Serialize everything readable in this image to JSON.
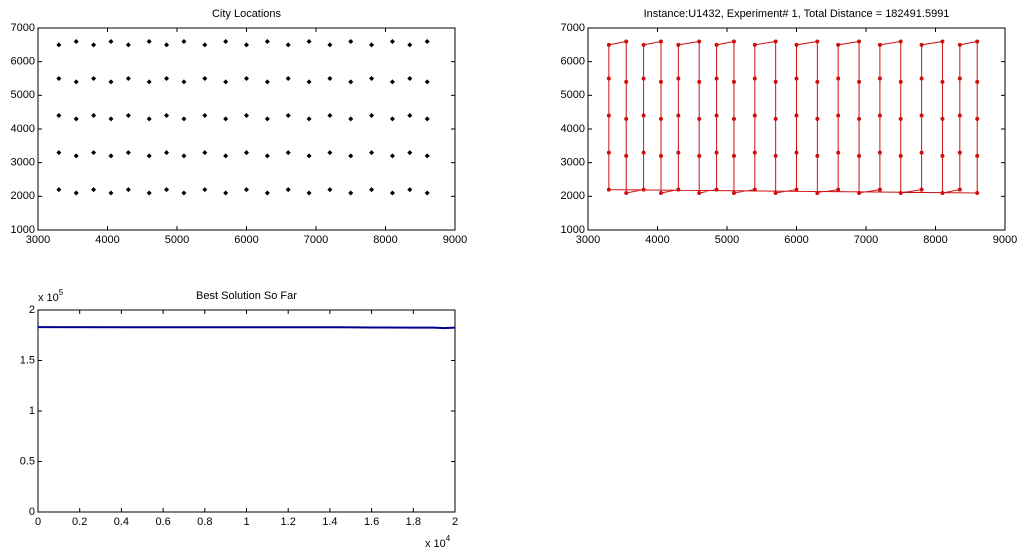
{
  "chart_data": [
    {
      "type": "scatter",
      "title": "City Locations",
      "color": "#000000",
      "x": [
        3300,
        3300,
        3300,
        3300,
        3300,
        3550,
        3550,
        3550,
        3550,
        3550,
        3800,
        3800,
        3800,
        3800,
        3800,
        4050,
        4050,
        4050,
        4050,
        4050,
        4300,
        4300,
        4300,
        4300,
        4300,
        4600,
        4600,
        4600,
        4600,
        4600,
        4850,
        4850,
        4850,
        4850,
        4850,
        5100,
        5100,
        5100,
        5100,
        5100,
        5400,
        5400,
        5400,
        5400,
        5400,
        5700,
        5700,
        5700,
        5700,
        5700,
        6000,
        6000,
        6000,
        6000,
        6000,
        6300,
        6300,
        6300,
        6300,
        6300,
        6600,
        6600,
        6600,
        6600,
        6600,
        6900,
        6900,
        6900,
        6900,
        6900,
        7200,
        7200,
        7200,
        7200,
        7200,
        7500,
        7500,
        7500,
        7500,
        7500,
        7800,
        7800,
        7800,
        7800,
        7800,
        8100,
        8100,
        8100,
        8100,
        8100,
        8350,
        8350,
        8350,
        8350,
        8350,
        8600,
        8600,
        8600,
        8600,
        8600
      ],
      "y": [
        2200,
        3300,
        4400,
        5500,
        6500,
        6600,
        5400,
        4300,
        3200,
        2100,
        2200,
        3300,
        4400,
        5500,
        6500,
        6600,
        5400,
        4300,
        3200,
        2100,
        2200,
        3300,
        4400,
        5500,
        6500,
        6600,
        5400,
        4300,
        3200,
        2100,
        2200,
        3300,
        4400,
        5500,
        6500,
        6600,
        5400,
        4300,
        3200,
        2100,
        2200,
        3300,
        4400,
        5500,
        6500,
        6600,
        5400,
        4300,
        3200,
        2100,
        2200,
        3300,
        4400,
        5500,
        6500,
        6600,
        5400,
        4300,
        3200,
        2100,
        2200,
        3300,
        4400,
        5500,
        6500,
        6600,
        5400,
        4300,
        3200,
        2100,
        2200,
        3300,
        4400,
        5500,
        6500,
        6600,
        5400,
        4300,
        3200,
        2100,
        2200,
        3300,
        4400,
        5500,
        6500,
        6600,
        5400,
        4300,
        3200,
        2100,
        2200,
        3300,
        4400,
        5500,
        6500,
        6600,
        5400,
        4300,
        3200,
        2100
      ],
      "xlim": [
        3000,
        9000
      ],
      "xticks": [
        3000,
        4000,
        5000,
        6000,
        7000,
        8000,
        9000
      ],
      "ylim": [
        1000,
        7000
      ],
      "yticks": [
        1000,
        2000,
        3000,
        4000,
        5000,
        6000,
        7000
      ]
    },
    {
      "type": "tour",
      "title": "Instance:U1432, Experiment# 1, Total Distance = 182491.5991",
      "color": "#cc1111",
      "x": [
        3300,
        3300,
        3300,
        3300,
        3300,
        3550,
        3550,
        3550,
        3550,
        3550,
        3800,
        3800,
        3800,
        3800,
        3800,
        4050,
        4050,
        4050,
        4050,
        4050,
        4300,
        4300,
        4300,
        4300,
        4300,
        4600,
        4600,
        4600,
        4600,
        4600,
        4850,
        4850,
        4850,
        4850,
        4850,
        5100,
        5100,
        5100,
        5100,
        5100,
        5400,
        5400,
        5400,
        5400,
        5400,
        5700,
        5700,
        5700,
        5700,
        5700,
        6000,
        6000,
        6000,
        6000,
        6000,
        6300,
        6300,
        6300,
        6300,
        6300,
        6600,
        6600,
        6600,
        6600,
        6600,
        6900,
        6900,
        6900,
        6900,
        6900,
        7200,
        7200,
        7200,
        7200,
        7200,
        7500,
        7500,
        7500,
        7500,
        7500,
        7800,
        7800,
        7800,
        7800,
        7800,
        8100,
        8100,
        8100,
        8100,
        8100,
        8350,
        8350,
        8350,
        8350,
        8350,
        8600,
        8600,
        8600,
        8600,
        8600
      ],
      "y": [
        2200,
        3300,
        4400,
        5500,
        6500,
        6600,
        5400,
        4300,
        3200,
        2100,
        2200,
        3300,
        4400,
        5500,
        6500,
        6600,
        5400,
        4300,
        3200,
        2100,
        2200,
        3300,
        4400,
        5500,
        6500,
        6600,
        5400,
        4300,
        3200,
        2100,
        2200,
        3300,
        4400,
        5500,
        6500,
        6600,
        5400,
        4300,
        3200,
        2100,
        2200,
        3300,
        4400,
        5500,
        6500,
        6600,
        5400,
        4300,
        3200,
        2100,
        2200,
        3300,
        4400,
        5500,
        6500,
        6600,
        5400,
        4300,
        3200,
        2100,
        2200,
        3300,
        4400,
        5500,
        6500,
        6600,
        5400,
        4300,
        3200,
        2100,
        2200,
        3300,
        4400,
        5500,
        6500,
        6600,
        5400,
        4300,
        3200,
        2100,
        2200,
        3300,
        4400,
        5500,
        6500,
        6600,
        5400,
        4300,
        3200,
        2100,
        2200,
        3300,
        4400,
        5500,
        6500,
        6600,
        5400,
        4300,
        3200,
        2100
      ],
      "xlim": [
        3000,
        9000
      ],
      "xticks": [
        3000,
        4000,
        5000,
        6000,
        7000,
        8000,
        9000
      ],
      "ylim": [
        1000,
        7000
      ],
      "yticks": [
        1000,
        2000,
        3000,
        4000,
        5000,
        6000,
        7000
      ]
    },
    {
      "type": "line",
      "title": "Best Solution So Far",
      "color": "#00008b",
      "x": [
        0,
        1.45,
        1.6,
        1.8,
        1.9,
        1.95,
        2
      ],
      "y": [
        1.83,
        1.829,
        1.827,
        1.826,
        1.825,
        1.82,
        1.8249
      ],
      "xlim": [
        0,
        2
      ],
      "xticks": [
        0,
        0.2,
        0.4,
        0.6,
        0.8,
        1,
        1.2,
        1.4,
        1.6,
        1.8,
        2
      ],
      "ylim": [
        0,
        2
      ],
      "yticks": [
        0,
        0.5,
        1,
        1.5,
        2
      ],
      "x_exponent": {
        "base": "x 10",
        "power": "4"
      },
      "y_exponent": {
        "base": "x 10",
        "power": "5"
      }
    }
  ]
}
